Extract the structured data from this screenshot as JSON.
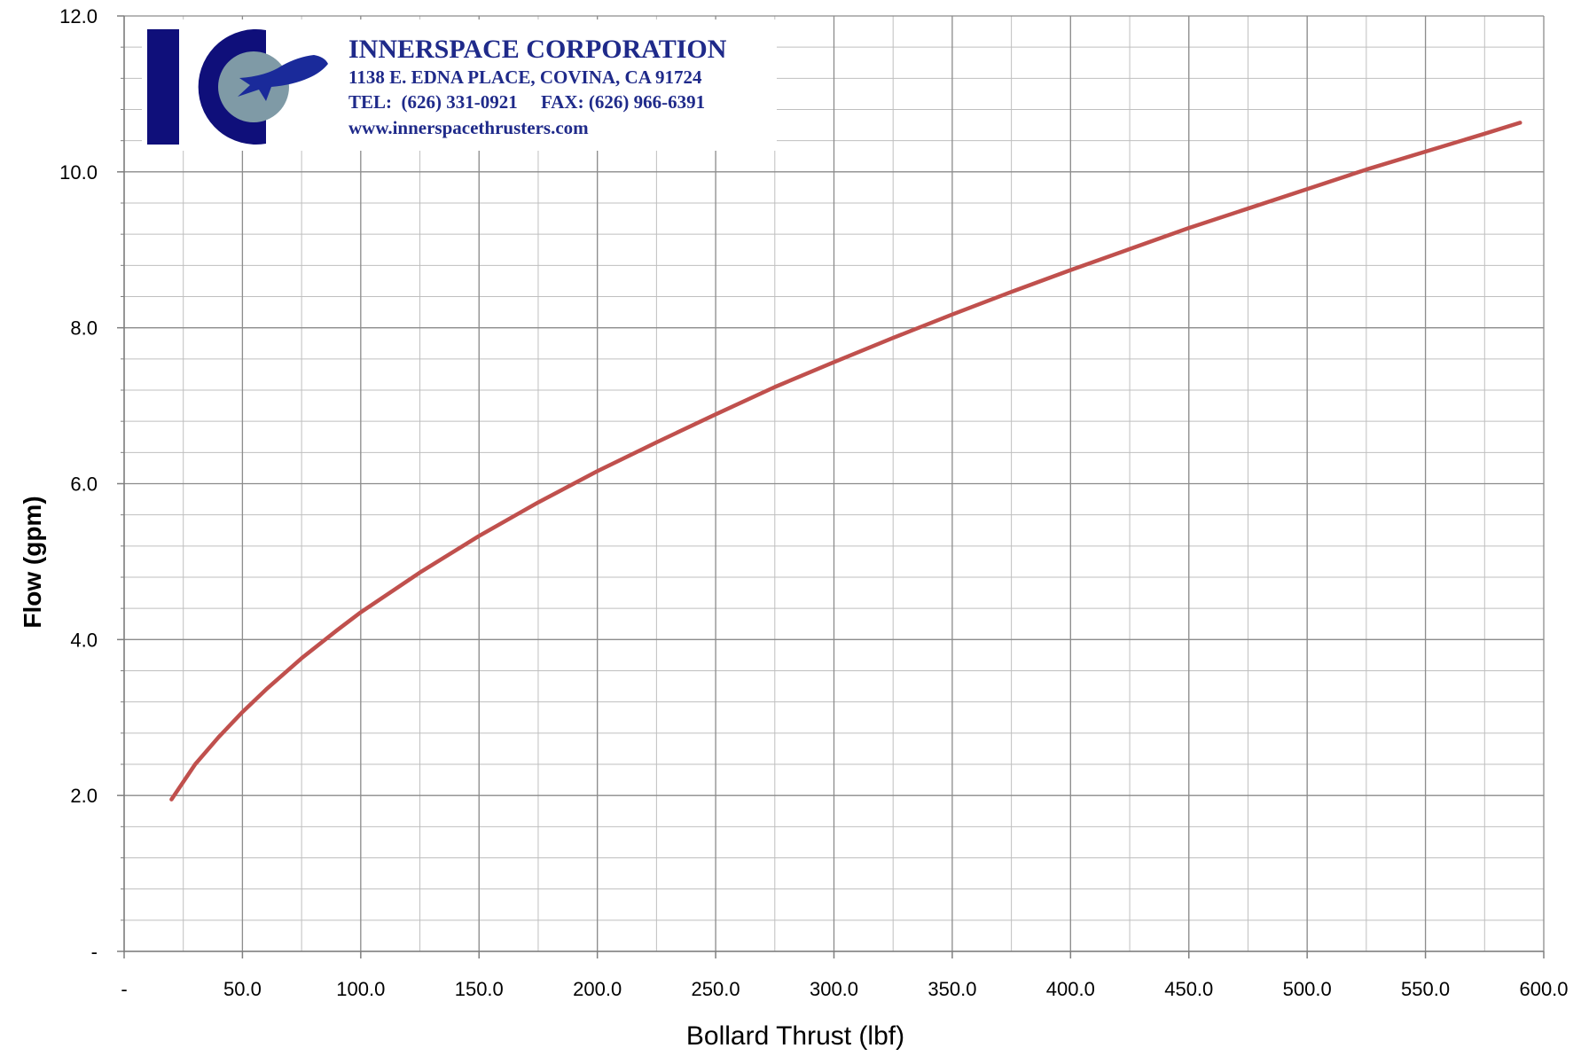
{
  "chart_data": {
    "type": "line",
    "title": "",
    "xlabel": "Bollard Thrust (lbf)",
    "ylabel": "Flow (gpm)",
    "xlim": [
      0,
      600
    ],
    "ylim": [
      0,
      12
    ],
    "x_major_step": 50,
    "x_minor_step": 25,
    "y_major_step": 2,
    "y_minor_step": 0.4,
    "grid": true,
    "x_tick_labels": [
      "-",
      "50.0",
      "100.0",
      "150.0",
      "200.0",
      "250.0",
      "300.0",
      "350.0",
      "400.0",
      "450.0",
      "500.0",
      "550.0",
      "600.0"
    ],
    "y_tick_labels": [
      "-",
      "2.0",
      "4.0",
      "6.0",
      "8.0",
      "10.0",
      "12.0"
    ],
    "series": [
      {
        "color": "#c0504d",
        "x": [
          20,
          30,
          40,
          50,
          60,
          75,
          90,
          100,
          125,
          150,
          175,
          200,
          225,
          250,
          275,
          300,
          325,
          350,
          375,
          400,
          425,
          450,
          475,
          500,
          525,
          550,
          575,
          590
        ],
        "y": [
          1.95,
          2.4,
          2.75,
          3.07,
          3.36,
          3.76,
          4.12,
          4.35,
          4.86,
          5.33,
          5.76,
          6.16,
          6.53,
          6.89,
          7.24,
          7.56,
          7.87,
          8.17,
          8.46,
          8.74,
          9.01,
          9.28,
          9.53,
          9.78,
          10.03,
          10.26,
          10.49,
          10.63
        ]
      }
    ]
  },
  "logo": {
    "company": "INNERSPACE CORPORATION",
    "address": "1138 E. EDNA PLACE, COVINA, CA 91724",
    "phone": "TEL:  (626) 331-0921     FAX: (626) 966-6391",
    "website": "www.innerspacethrusters.com",
    "colors": {
      "navy": "#0f0f7a",
      "gray": "#7f9aa6",
      "text": "#1f2a8a"
    }
  }
}
